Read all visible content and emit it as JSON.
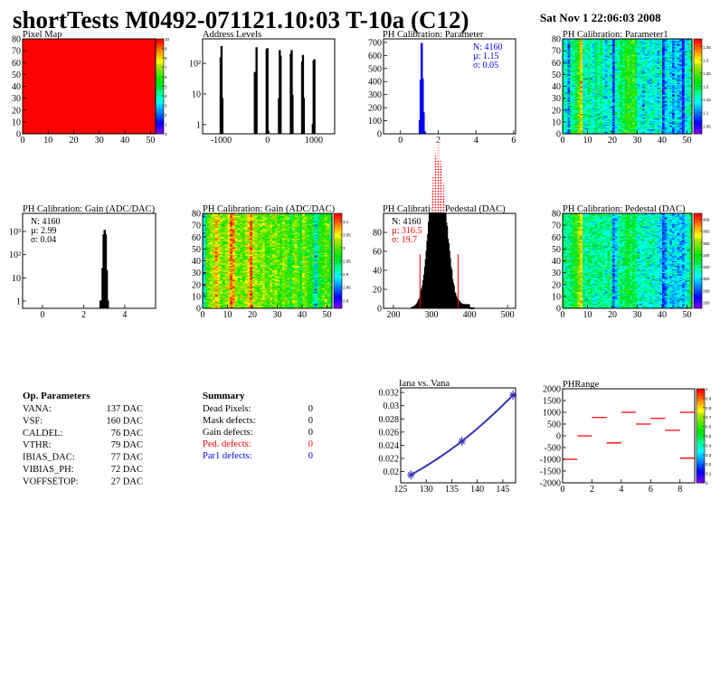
{
  "header": {
    "title": "shortTests M0492-071121.10:03 T-10a (C12)",
    "date": "Sat Nov  1 22:06:03 2008"
  },
  "op_parameters": {
    "heading": "Op. Parameters",
    "rows": [
      {
        "label": "VANA:",
        "value": "137 DAC"
      },
      {
        "label": "VSF:",
        "value": "160 DAC"
      },
      {
        "label": "CALDEL:",
        "value": "76 DAC"
      },
      {
        "label": "VTHR:",
        "value": "79 DAC"
      },
      {
        "label": "IBIAS_DAC:",
        "value": "77 DAC"
      },
      {
        "label": "VIBIAS_PH:",
        "value": "72 DAC"
      },
      {
        "label": "VOFFSETOP:",
        "value": "27 DAC"
      }
    ]
  },
  "summary": {
    "heading": "Summary",
    "rows": [
      {
        "label": "Dead Pixels:",
        "value": "0",
        "color": "#000000"
      },
      {
        "label": "Mask defects:",
        "value": "0",
        "color": "#000000"
      },
      {
        "label": "Gain defects:",
        "value": "0",
        "color": "#000000"
      },
      {
        "label": "Ped. defects:",
        "value": "0",
        "color": "#ff0000"
      },
      {
        "label": "Par1 defects:",
        "value": "0",
        "color": "#0000ff"
      }
    ]
  },
  "chart_data": [
    {
      "id": "pixelmap",
      "type": "heatmap",
      "title": "Pixel Map",
      "xlim": [
        0,
        52
      ],
      "ylim": [
        0,
        80
      ],
      "zlim": [
        0,
        10
      ],
      "xticks": [
        0,
        10,
        20,
        30,
        40,
        50
      ],
      "yticks": [
        0,
        10,
        20,
        30,
        40,
        50,
        60,
        70,
        80
      ],
      "zticks": [
        0,
        1,
        2,
        3,
        4,
        5,
        6,
        7,
        8,
        9,
        10
      ],
      "uniform_value": 10
    },
    {
      "id": "address",
      "type": "bar",
      "title": "Address Levels",
      "xlim": [
        -1400,
        1450
      ],
      "ylim": [
        0.5,
        630
      ],
      "log_y": true,
      "xticks": [
        -1000,
        0,
        1000
      ],
      "yticks": [
        1,
        10,
        100
      ],
      "ytick_labels": [
        "1",
        "10",
        "10²"
      ],
      "bin_width": 18,
      "bins": [
        [
          -1010,
          150
        ],
        [
          -992,
          350
        ],
        [
          -974,
          7
        ],
        [
          -272,
          50
        ],
        [
          -254,
          50
        ],
        [
          -236,
          320
        ],
        [
          -18,
          280
        ],
        [
          0,
          300
        ],
        [
          18,
          0.6
        ],
        [
          248,
          7
        ],
        [
          266,
          260
        ],
        [
          284,
          170
        ],
        [
          504,
          200
        ],
        [
          522,
          260
        ],
        [
          540,
          9
        ],
        [
          748,
          110
        ],
        [
          766,
          180
        ],
        [
          784,
          7
        ],
        [
          978,
          1
        ],
        [
          996,
          120
        ],
        [
          1014,
          130
        ]
      ],
      "color": "#000000"
    },
    {
      "id": "phpar",
      "type": "bar",
      "title": "PH Calibration: Parameter",
      "xlim": [
        -0.9,
        6.1
      ],
      "ylim": [
        0,
        727
      ],
      "xticks": [
        0,
        2,
        4,
        6
      ],
      "yticks": [
        0,
        100,
        200,
        300,
        400,
        500,
        600,
        700
      ],
      "bin_width": 0.05,
      "bins": [
        [
          1.025,
          100
        ],
        [
          1.075,
          410
        ],
        [
          1.125,
          690
        ],
        [
          1.175,
          420
        ],
        [
          1.225,
          160
        ],
        [
          1.275,
          15
        ],
        [
          1.325,
          2
        ]
      ],
      "color": "#0000ff",
      "stats": {
        "n": "N: 4160",
        "mean": "µ: 1.15",
        "sigma": "σ: 0.05",
        "color": "#0000ff"
      }
    },
    {
      "id": "par1map",
      "type": "heatmap",
      "title": "PH Calibration: Parameter1",
      "xlim": [
        0,
        52
      ],
      "ylim": [
        0,
        80
      ],
      "zlim": [
        1.02,
        1.38
      ],
      "xticks": [
        0,
        10,
        20,
        30,
        40,
        50
      ],
      "yticks": [
        0,
        10,
        20,
        30,
        40,
        50,
        60,
        70,
        80
      ],
      "zticks": [
        1.05,
        1.1,
        1.15,
        1.2,
        1.25,
        1.3,
        1.35
      ],
      "noise": 0.025,
      "column_means": [
        1.16,
        1.14,
        1.1,
        1.18,
        1.17,
        1.2,
        1.24,
        1.3,
        1.17,
        1.15,
        1.18,
        1.16,
        1.14,
        1.19,
        1.16,
        1.18,
        1.15,
        1.13,
        1.17,
        1.15,
        1.08,
        1.17,
        1.16,
        1.2,
        1.18,
        1.22,
        1.23,
        1.21,
        1.24,
        1.2,
        1.15,
        1.16,
        1.13,
        1.17,
        1.15,
        1.14,
        1.16,
        1.15,
        1.13,
        1.17,
        1.07,
        1.12,
        1.15,
        1.13,
        1.1,
        1.14,
        1.12,
        1.11,
        1.06,
        1.14,
        1.15,
        1.18
      ]
    },
    {
      "id": "gainhist",
      "type": "bar",
      "title": "PH Calibration: Gain (ADC/DAC)",
      "xlim": [
        -0.97,
        5.5
      ],
      "ylim": [
        0.49,
        6000
      ],
      "log_y": true,
      "xticks": [
        0,
        2,
        4
      ],
      "yticks": [
        1,
        10,
        100,
        1000
      ],
      "ytick_labels": [
        "1",
        "10",
        "10²",
        "10³"
      ],
      "bin_width": 0.05,
      "bins": [
        [
          2.825,
          1
        ],
        [
          2.875,
          1
        ],
        [
          2.925,
          25
        ],
        [
          2.975,
          700
        ],
        [
          3.025,
          1100
        ],
        [
          3.075,
          700
        ],
        [
          3.125,
          20
        ],
        [
          3.175,
          1
        ]
      ],
      "color": "#000000",
      "stats": {
        "n": "N: 4160",
        "mean": "µ: 2.99",
        "sigma": "σ: 0.04",
        "color": "#000000"
      }
    },
    {
      "id": "gainmap",
      "type": "heatmap",
      "title": "PH Calibration: Gain (ADC/DAC)",
      "xlim": [
        0,
        52
      ],
      "ylim": [
        0,
        80
      ],
      "zlim": [
        2.77,
        3.13
      ],
      "xticks": [
        0,
        10,
        20,
        30,
        40,
        50
      ],
      "yticks": [
        0,
        10,
        20,
        30,
        40,
        50,
        60,
        70,
        80
      ],
      "zticks": [
        2.8,
        2.85,
        2.9,
        2.95,
        3,
        3.05,
        3.1
      ],
      "noise": 0.025,
      "column_means": [
        2.88,
        2.98,
        3.0,
        3.02,
        3.03,
        3.07,
        3.04,
        3.01,
        3.0,
        3.02,
        3.03,
        3.1,
        3.08,
        3.02,
        3.0,
        3.01,
        3.0,
        3.02,
        3.05,
        3.1,
        3.03,
        3.02,
        3.0,
        3.01,
        3.02,
        3.0,
        2.99,
        3.01,
        3.0,
        3.02,
        3.0,
        2.98,
        3.01,
        3.0,
        2.99,
        2.96,
        3.0,
        3.01,
        2.99,
        2.96,
        3.02,
        3.0,
        2.98,
        2.97,
        2.96,
        2.88,
        2.95,
        2.97,
        2.98,
        3.0,
        2.99,
        2.96
      ]
    },
    {
      "id": "pedhist",
      "type": "bar",
      "title": "PH Calibration: Pedestal (DAC)",
      "xlim": [
        174,
        521
      ],
      "ylim": [
        0,
        100
      ],
      "xticks": [
        200,
        300,
        400,
        500
      ],
      "yticks": [
        0,
        20,
        40,
        60,
        80
      ],
      "gaussian": {
        "n": 4160,
        "mean": 316.5,
        "sigma": 19.7,
        "bin_width": 2
      },
      "cut_lines": [
        270,
        370
      ],
      "cut_height": 57,
      "color": "#000000",
      "fill_color": "#ff0000",
      "stats": {
        "n": "N: 4160",
        "mean": "µ: 316.5",
        "sigma": "σ: 19.7",
        "color": "#ff0000"
      }
    },
    {
      "id": "pedmap",
      "type": "heatmap",
      "title": "PH Calibration: Pedestal (DAC)",
      "xlim": [
        0,
        52
      ],
      "ylim": [
        0,
        80
      ],
      "zlim": [
        250,
        410
      ],
      "xticks": [
        0,
        10,
        20,
        30,
        40,
        50
      ],
      "yticks": [
        0,
        10,
        20,
        30,
        40,
        50,
        60,
        70,
        80
      ],
      "zticks": [
        260,
        280,
        300,
        320,
        340,
        360,
        380,
        400
      ],
      "noise": 11,
      "column_means": [
        325,
        320,
        318,
        330,
        335,
        340,
        355,
        372,
        320,
        318,
        322,
        320,
        316,
        318,
        320,
        322,
        318,
        315,
        320,
        318,
        285,
        300,
        312,
        325,
        320,
        330,
        335,
        325,
        330,
        320,
        310,
        312,
        308,
        315,
        312,
        310,
        314,
        310,
        305,
        300,
        280,
        288,
        305,
        300,
        295,
        302,
        298,
        300,
        292,
        305,
        310,
        330
      ]
    },
    {
      "id": "iana",
      "type": "line",
      "title": "Iana vs. Vana",
      "xlim": [
        125,
        147.5
      ],
      "ylim": [
        0.0183,
        0.0327
      ],
      "xticks": [
        125,
        130,
        135,
        140,
        145
      ],
      "yticks": [
        0.02,
        0.022,
        0.024,
        0.026,
        0.028,
        0.03,
        0.032
      ],
      "x": [
        127,
        137,
        147
      ],
      "y": [
        0.0195,
        0.0246,
        0.0316
      ],
      "color": "#3333bb"
    },
    {
      "id": "phrange",
      "type": "heatmap",
      "title": "PHRange",
      "xlim": [
        0,
        9
      ],
      "ylim": [
        -2000,
        2000
      ],
      "zlim": [
        0,
        1
      ],
      "xticks": [
        0,
        2,
        4,
        6,
        8
      ],
      "yticks": [
        -2000,
        -1500,
        -1000,
        -500,
        0,
        500,
        1000,
        1500,
        2000
      ],
      "zticks": [
        0,
        0.1,
        0.2,
        0.3,
        0.4,
        0.5,
        0.6,
        0.7,
        0.8,
        0.9,
        1
      ],
      "segments": [
        [
          0,
          -1000
        ],
        [
          1,
          0
        ],
        [
          2,
          780
        ],
        [
          3,
          -300
        ],
        [
          4,
          1000
        ],
        [
          5,
          500
        ],
        [
          6,
          740
        ],
        [
          7,
          230
        ],
        [
          8,
          1000
        ],
        [
          8,
          -950
        ]
      ],
      "color": "#ff0000"
    }
  ]
}
